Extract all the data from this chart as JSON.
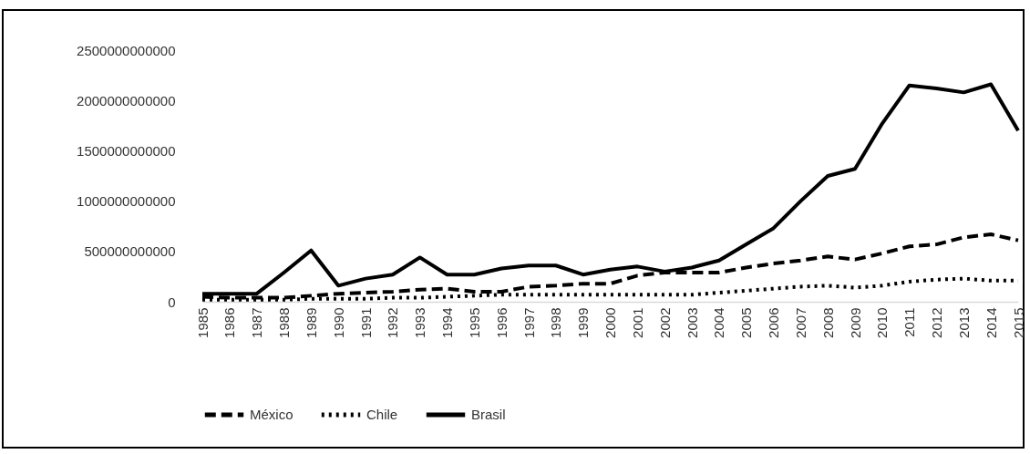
{
  "chart_data": {
    "type": "line",
    "categories": [
      "1985",
      "1986",
      "1987",
      "1988",
      "1989",
      "1990",
      "1991",
      "1992",
      "1993",
      "1994",
      "1995",
      "1996",
      "1997",
      "1998",
      "1999",
      "2000",
      "2001",
      "2002",
      "2003",
      "2004",
      "2005",
      "2006",
      "2007",
      "2008",
      "2009",
      "2010",
      "2011",
      "2012",
      "2013",
      "2014",
      "2015"
    ],
    "series": [
      {
        "name": "México",
        "color": "#000000",
        "line_style": "dashed",
        "values": [
          50000000000,
          40000000000,
          40000000000,
          40000000000,
          60000000000,
          80000000000,
          90000000000,
          100000000000,
          120000000000,
          130000000000,
          100000000000,
          100000000000,
          150000000000,
          160000000000,
          180000000000,
          180000000000,
          260000000000,
          290000000000,
          290000000000,
          290000000000,
          340000000000,
          380000000000,
          410000000000,
          450000000000,
          420000000000,
          480000000000,
          550000000000,
          570000000000,
          640000000000,
          670000000000,
          610000000000
        ]
      },
      {
        "name": "Chile",
        "color": "#000000",
        "line_style": "dotted",
        "values": [
          20000000000,
          20000000000,
          20000000000,
          20000000000,
          30000000000,
          30000000000,
          30000000000,
          40000000000,
          40000000000,
          50000000000,
          60000000000,
          70000000000,
          70000000000,
          70000000000,
          70000000000,
          70000000000,
          70000000000,
          70000000000,
          70000000000,
          90000000000,
          110000000000,
          130000000000,
          150000000000,
          160000000000,
          140000000000,
          160000000000,
          200000000000,
          220000000000,
          230000000000,
          210000000000,
          210000000000
        ]
      },
      {
        "name": "Brasil",
        "color": "#000000",
        "line_style": "solid",
        "values": [
          80000000000,
          80000000000,
          80000000000,
          290000000000,
          510000000000,
          160000000000,
          230000000000,
          270000000000,
          440000000000,
          270000000000,
          270000000000,
          330000000000,
          360000000000,
          360000000000,
          270000000000,
          320000000000,
          350000000000,
          300000000000,
          340000000000,
          410000000000,
          570000000000,
          730000000000,
          1000000000000,
          1250000000000,
          1320000000000,
          1770000000000,
          2150000000000,
          2120000000000,
          2080000000000,
          2160000000000,
          1700000000000
        ]
      }
    ],
    "ylim": [
      0,
      2500000000000
    ],
    "yticks": [
      0,
      500000000000,
      1000000000000,
      1500000000000,
      2000000000000,
      2500000000000
    ],
    "grid": false,
    "legend": "bottom"
  }
}
